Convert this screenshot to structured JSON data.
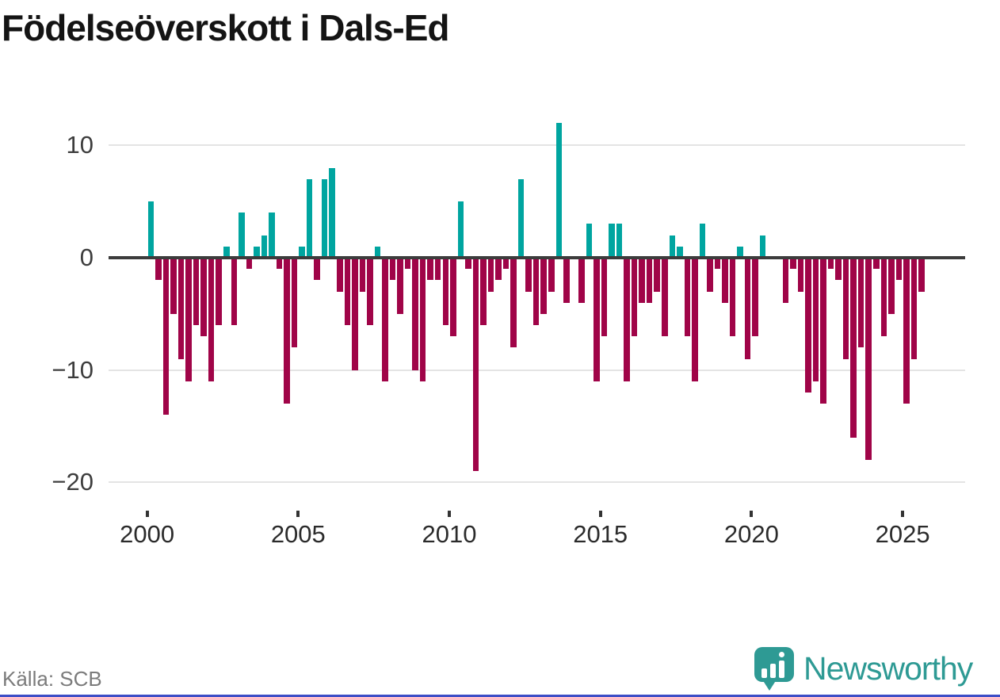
{
  "title": "Födelseöverskott i Dals-Ed",
  "source": "Källa: SCB",
  "brand": {
    "name": "Newsworthy",
    "color": "#2e9a94"
  },
  "colors": {
    "positive": "#00a5a0",
    "negative": "#a00448",
    "zero_line": "#3c3c3c",
    "gridline": "#e4e4e4",
    "footer_line": "#3d4ec6",
    "title_text": "#141414",
    "axis_text": "#3d3d3d",
    "source_text": "#7b7b7b"
  },
  "chart_data": {
    "type": "bar",
    "title": "Födelseöverskott i Dals-Ed",
    "frequency": "quarterly",
    "start_year": 2000,
    "start_quarter": 1,
    "end_year": 2025,
    "end_quarter": 3,
    "x_ticks": [
      2000,
      2005,
      2010,
      2015,
      2020,
      2025
    ],
    "x_tick_labels": [
      "2000",
      "2005",
      "2010",
      "2015",
      "2020",
      "2025"
    ],
    "y_ticks": [
      10,
      0,
      -10,
      -20
    ],
    "y_tick_labels": [
      "10",
      "0",
      "−10",
      "−20"
    ],
    "ylim": [
      -20.5,
      12.5
    ],
    "grid": "horizontal",
    "legend": "none",
    "values": [
      5,
      -2,
      -14,
      -5,
      -9,
      -11,
      -6,
      -7,
      -11,
      -6,
      1,
      -6,
      4,
      -1,
      1,
      2,
      4,
      -1,
      -13,
      -8,
      1,
      7,
      -2,
      7,
      8,
      -3,
      -6,
      -10,
      -3,
      -6,
      1,
      -11,
      -2,
      -5,
      -1,
      -10,
      -11,
      -2,
      -2,
      -6,
      -7,
      5,
      -1,
      -19,
      -6,
      -3,
      -2,
      -1,
      -8,
      7,
      -3,
      -6,
      -5,
      -3,
      12,
      -4,
      0,
      -4,
      3,
      -11,
      -7,
      3,
      3,
      -11,
      -7,
      -4,
      -4,
      -3,
      -7,
      2,
      1,
      -7,
      -11,
      3,
      -3,
      -1,
      -4,
      -7,
      1,
      -9,
      -7,
      2,
      0,
      0,
      -4,
      -1,
      -3,
      -12,
      -11,
      -13,
      -1,
      -2,
      -9,
      -16,
      -8,
      -18,
      -1,
      -7,
      -5,
      -2,
      -13,
      -9,
      -3
    ]
  }
}
